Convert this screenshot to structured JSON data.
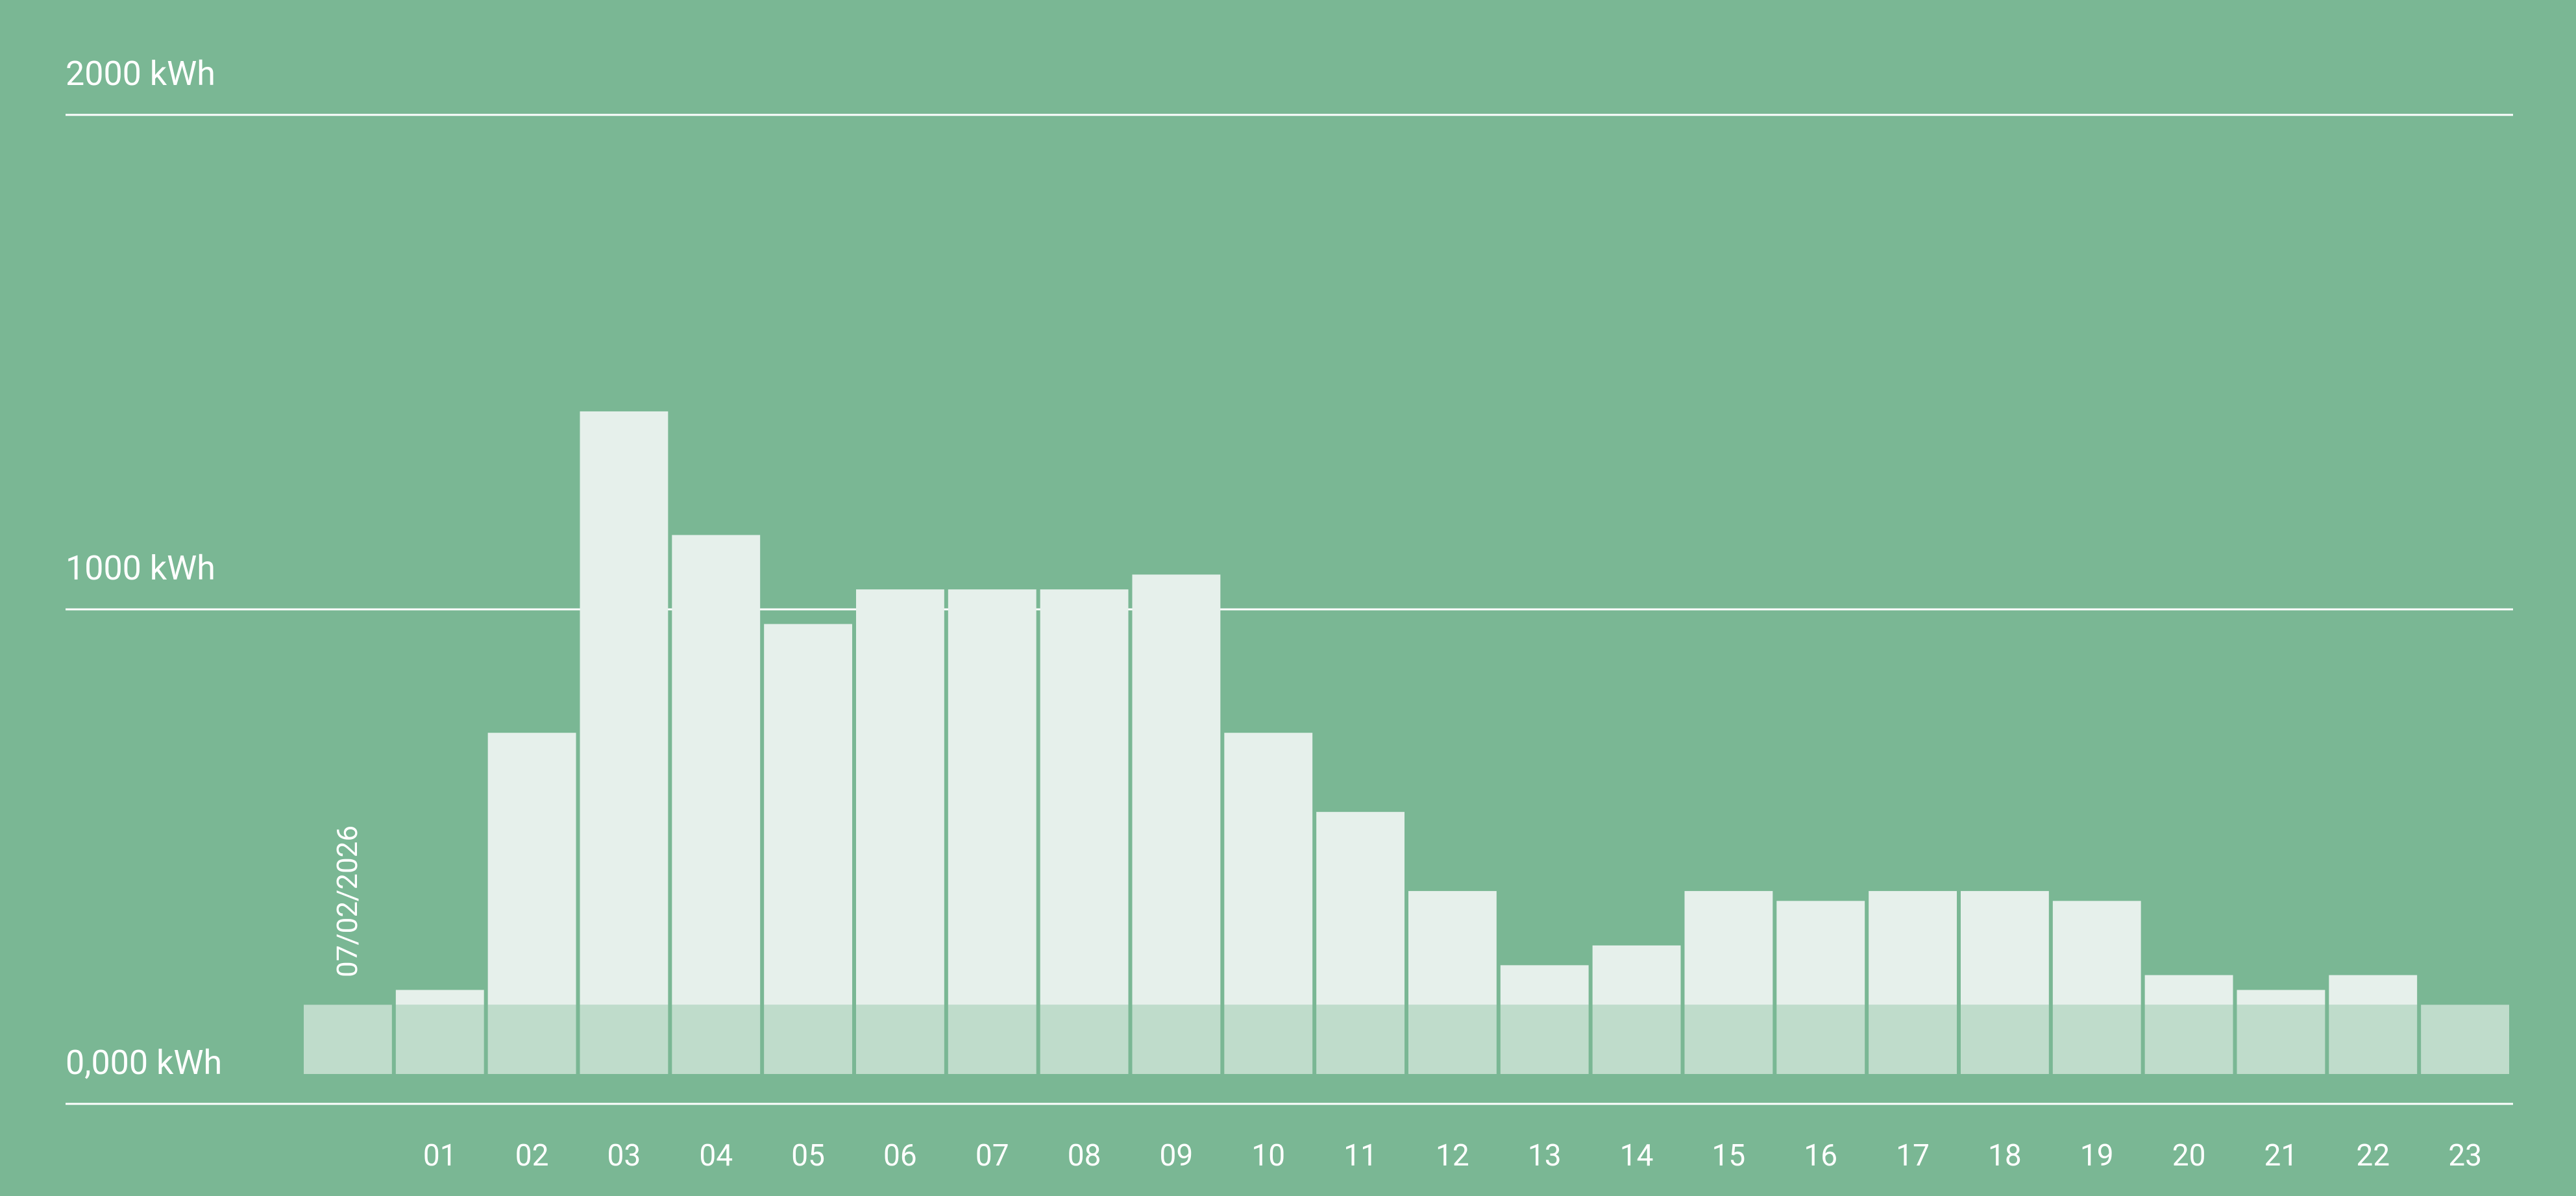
{
  "chart_data": {
    "type": "bar",
    "stacked": true,
    "annotation": "07/02/2026",
    "categories": [
      null,
      "01",
      "02",
      "03",
      "04",
      "05",
      "06",
      "07",
      "08",
      "09",
      "10",
      "11",
      "12",
      "13",
      "14",
      "15",
      "16",
      "17",
      "18",
      "19",
      "20",
      "21",
      "22",
      "23"
    ],
    "series": [
      {
        "color": "#bfdccb",
        "values": [
          140,
          140,
          140,
          140,
          140,
          140,
          140,
          140,
          140,
          140,
          140,
          140,
          140,
          140,
          140,
          140,
          140,
          140,
          140,
          140,
          140,
          140,
          140,
          140
        ]
      },
      {
        "color": "#e6f0eb",
        "values": [
          0,
          30,
          550,
          1200,
          950,
          770,
          840,
          840,
          840,
          870,
          550,
          390,
          230,
          80,
          120,
          230,
          210,
          230,
          230,
          210,
          60,
          30,
          60,
          0
        ]
      }
    ],
    "ylim": [
      0,
      2000
    ],
    "yticks": [
      {
        "value": 0,
        "label": "0,000 kWh"
      },
      {
        "value": 1000,
        "label": "1000 kWh"
      },
      {
        "value": 2000,
        "label": "2000 kWh"
      }
    ],
    "grid": true,
    "background": "#7ab794"
  }
}
